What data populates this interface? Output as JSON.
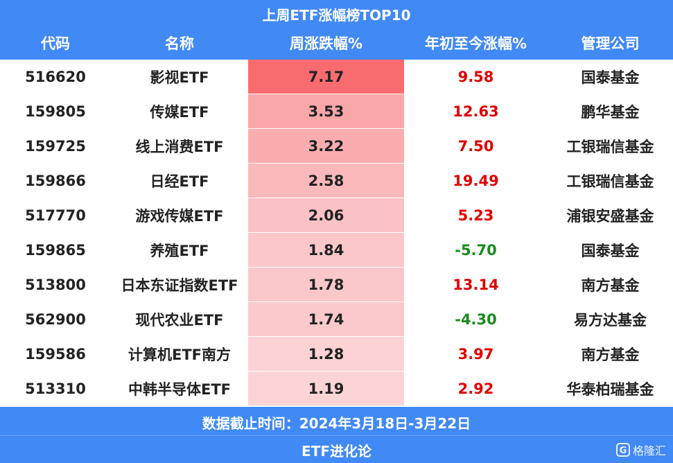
{
  "header": {
    "title": "上周ETF涨幅榜TOP10"
  },
  "table": {
    "columns": [
      "代码",
      "名称",
      "周涨跌幅%",
      "年初至今涨幅%",
      "管理公司"
    ],
    "rows": [
      [
        "516620",
        "影视ETF",
        "7.17",
        "9.58",
        "国泰基金"
      ],
      [
        "159805",
        "传媒ETF",
        "3.53",
        "12.63",
        "鹏华基金"
      ],
      [
        "159725",
        "线上消费ETF",
        "3.22",
        "7.50",
        "工银瑞信基金"
      ],
      [
        "159866",
        "日经ETF",
        "2.58",
        "19.49",
        "工银瑞信基金"
      ],
      [
        "517770",
        "游戏传媒ETF",
        "2.06",
        "5.23",
        "浦银安盛基金"
      ],
      [
        "159865",
        "养殖ETF",
        "1.84",
        "-5.70",
        "国泰基金"
      ],
      [
        "513800",
        "日本东证指数ETF",
        "1.78",
        "13.14",
        "南方基金"
      ],
      [
        "562900",
        "现代农业ETF",
        "1.74",
        "-4.30",
        "易方达基金"
      ],
      [
        "159586",
        "计算机ETF南方",
        "1.28",
        "3.97",
        "南方基金"
      ],
      [
        "513310",
        "中韩半导体ETF",
        "1.19",
        "2.92",
        "华泰柏瑞基金"
      ]
    ]
  },
  "footer": {
    "date_note": "数据截止时间：2024年3月18日-3月22日",
    "source": "ETF进化论"
  },
  "watermark": "格隆汇"
}
